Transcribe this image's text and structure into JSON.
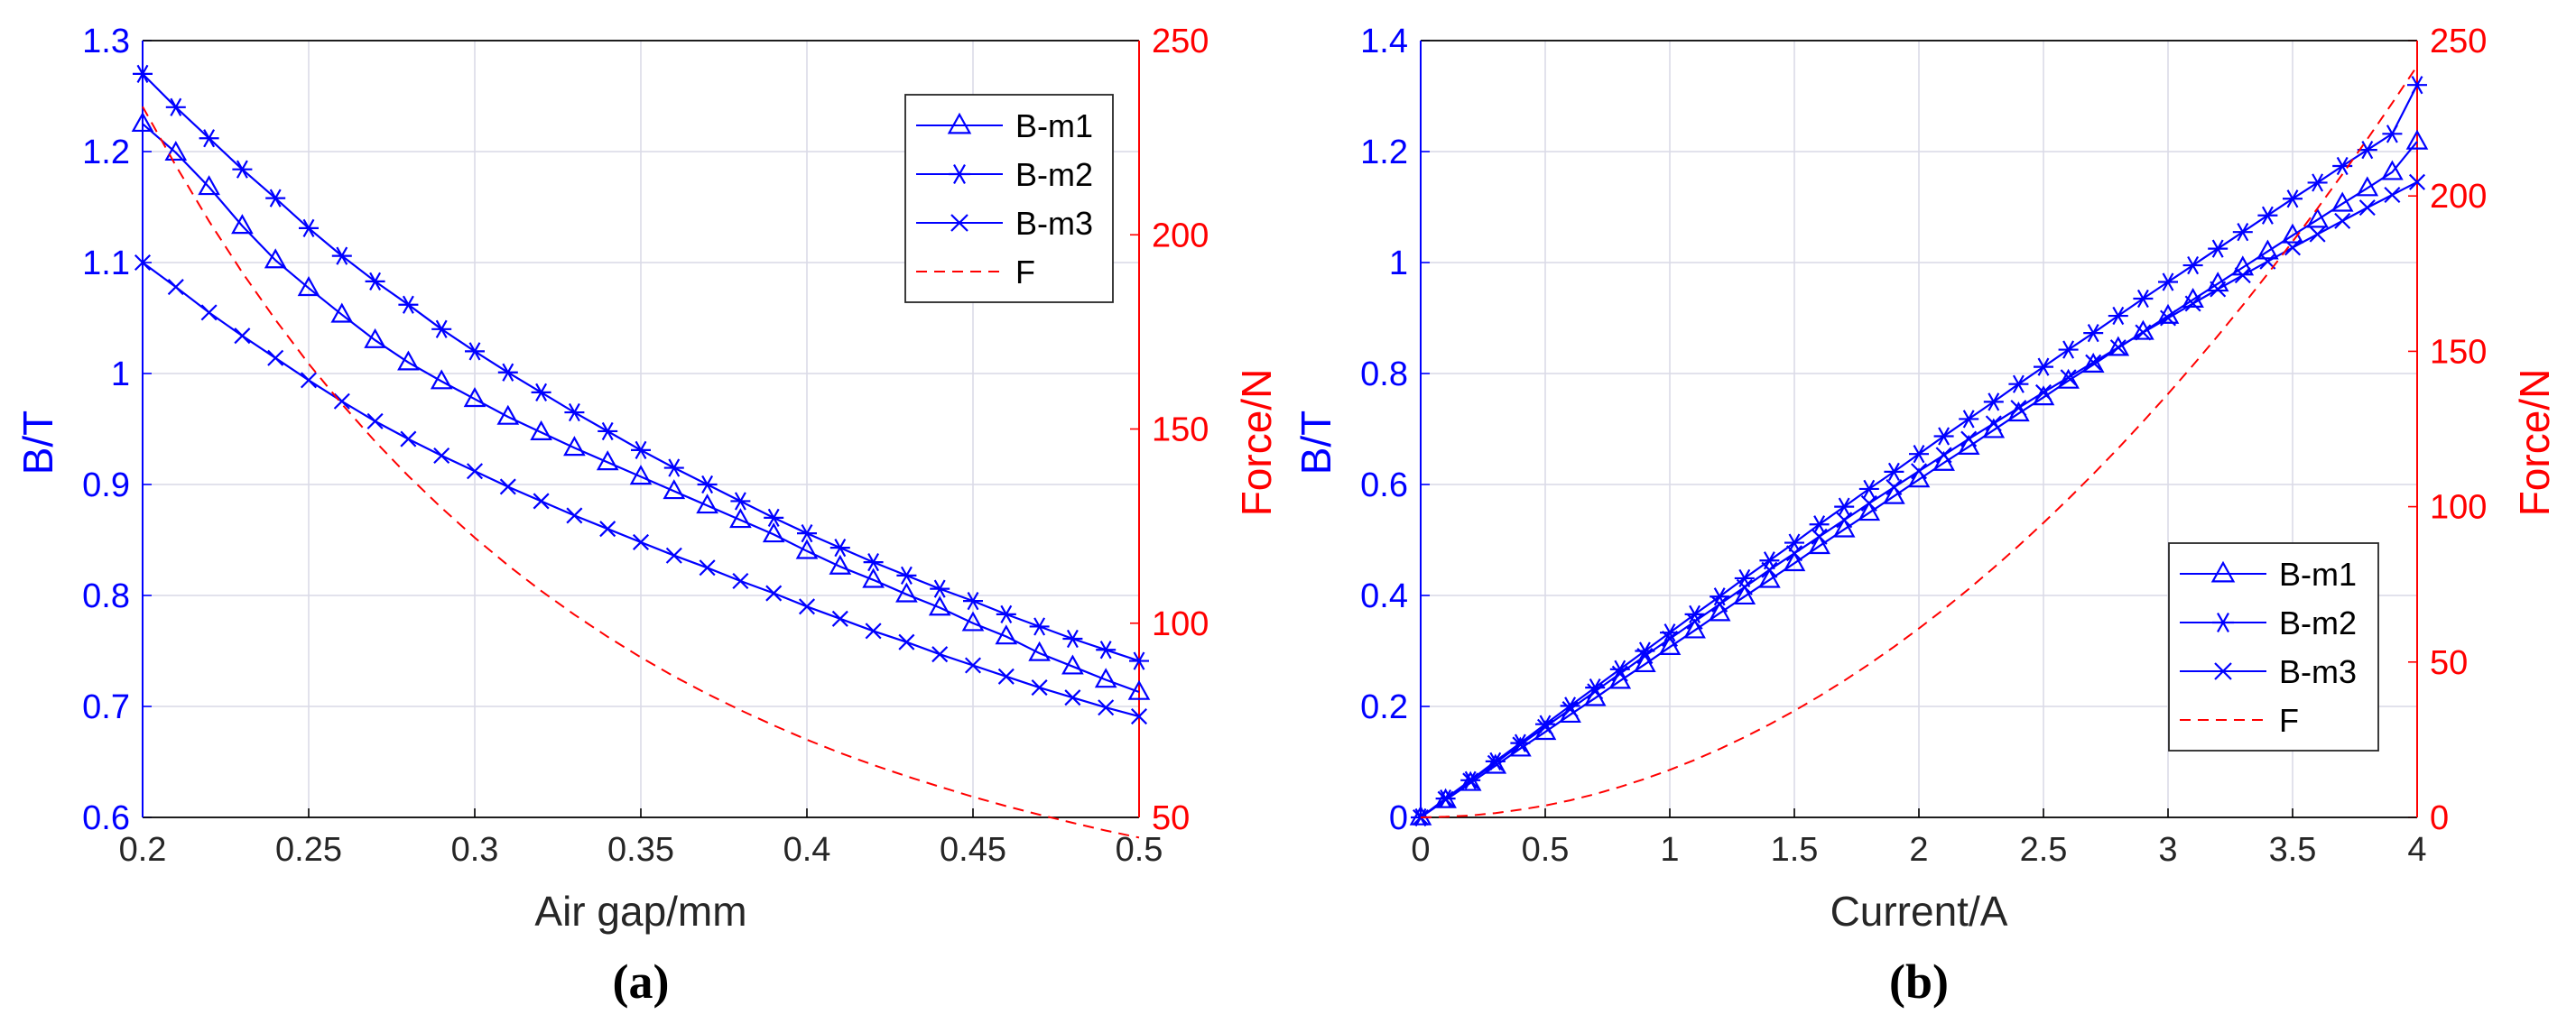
{
  "colors": {
    "left_axis": "#0000FF",
    "right_axis": "#FF0000",
    "grid": "#D9D9E6",
    "frame": "#000000"
  },
  "chart_data": [
    {
      "type": "line",
      "panel_label": "(a)",
      "xlabel": "Air gap/mm",
      "ylabel": "B/T",
      "y2label": "Force/N",
      "xlim": [
        0.2,
        0.5
      ],
      "ylim": [
        0.6,
        1.3
      ],
      "y2lim": [
        50,
        250
      ],
      "xticks": [
        "0.2",
        "0.25",
        "0.3",
        "0.35",
        "0.4",
        "0.45",
        "0.5"
      ],
      "yticks": [
        "0.6",
        "0.7",
        "0.8",
        "0.9",
        "1",
        "1.1",
        "1.2",
        "1.3"
      ],
      "y2ticks": [
        "50",
        "100",
        "150",
        "200",
        "250"
      ],
      "grid": true,
      "legend_position": "top-right",
      "x": [
        0.2,
        0.21,
        0.22,
        0.23,
        0.24,
        0.25,
        0.26,
        0.27,
        0.28,
        0.29,
        0.3,
        0.31,
        0.32,
        0.33,
        0.34,
        0.35,
        0.36,
        0.37,
        0.38,
        0.39,
        0.4,
        0.41,
        0.42,
        0.43,
        0.44,
        0.45,
        0.46,
        0.47,
        0.48,
        0.49,
        0.5
      ],
      "series": [
        {
          "name": "B-m1",
          "marker": "triangle",
          "axis": "left",
          "dash": "solid",
          "values": [
            1.225,
            1.199,
            1.168,
            1.133,
            1.102,
            1.077,
            1.053,
            1.03,
            1.01,
            0.993,
            0.977,
            0.961,
            0.947,
            0.933,
            0.92,
            0.907,
            0.894,
            0.881,
            0.868,
            0.855,
            0.84,
            0.826,
            0.814,
            0.801,
            0.789,
            0.775,
            0.763,
            0.748,
            0.736,
            0.724,
            0.713
          ]
        },
        {
          "name": "B-m2",
          "marker": "asterisk",
          "axis": "left",
          "dash": "solid",
          "values": [
            1.27,
            1.24,
            1.212,
            1.184,
            1.158,
            1.131,
            1.106,
            1.083,
            1.062,
            1.04,
            1.02,
            1.001,
            0.983,
            0.965,
            0.948,
            0.931,
            0.915,
            0.9,
            0.885,
            0.87,
            0.856,
            0.843,
            0.83,
            0.818,
            0.806,
            0.795,
            0.783,
            0.772,
            0.761,
            0.751,
            0.741
          ]
        },
        {
          "name": "B-m3",
          "marker": "x",
          "axis": "left",
          "dash": "solid",
          "values": [
            1.1,
            1.078,
            1.055,
            1.034,
            1.014,
            0.994,
            0.975,
            0.957,
            0.941,
            0.926,
            0.912,
            0.898,
            0.885,
            0.872,
            0.86,
            0.848,
            0.836,
            0.825,
            0.813,
            0.802,
            0.79,
            0.779,
            0.768,
            0.758,
            0.747,
            0.737,
            0.727,
            0.717,
            0.708,
            0.699,
            0.691
          ]
        },
        {
          "name": "F",
          "marker": "none",
          "axis": "right",
          "dash": "dashed",
          "values": [
            233.0,
            217.8,
            203.5,
            190.3,
            178.1,
            166.8,
            156.4,
            146.8,
            137.9,
            129.7,
            122.0,
            114.9,
            108.3,
            102.2,
            96.5,
            91.2,
            86.3,
            81.8,
            77.6,
            73.7,
            70.0,
            66.6,
            63.5,
            60.6,
            57.9,
            55.3,
            52.9,
            50.7,
            48.6,
            46.6,
            44.8
          ]
        }
      ]
    },
    {
      "type": "line",
      "panel_label": "(b)",
      "xlabel": "Current/A",
      "ylabel": "B/T",
      "y2label": "Force/N",
      "xlim": [
        0,
        4
      ],
      "ylim": [
        0,
        1.4
      ],
      "y2lim": [
        0,
        250
      ],
      "xticks": [
        "0",
        "0.5",
        "1",
        "1.5",
        "2",
        "2.5",
        "3",
        "3.5",
        "4"
      ],
      "yticks": [
        "0",
        "0.2",
        "0.4",
        "0.6",
        "0.8",
        "1",
        "1.2",
        "1.4"
      ],
      "y2ticks": [
        "0",
        "50",
        "100",
        "150",
        "200",
        "250"
      ],
      "grid": true,
      "legend_position": "bottom-right",
      "x": [
        0,
        0.1,
        0.2,
        0.3,
        0.4,
        0.5,
        0.6,
        0.7,
        0.8,
        0.9,
        1.0,
        1.1,
        1.2,
        1.3,
        1.4,
        1.5,
        1.6,
        1.7,
        1.8,
        1.9,
        2.0,
        2.1,
        2.2,
        2.3,
        2.4,
        2.5,
        2.6,
        2.7,
        2.8,
        2.9,
        3.0,
        3.1,
        3.2,
        3.3,
        3.4,
        3.5,
        3.6,
        3.7,
        3.8,
        3.9,
        4.0
      ],
      "series": [
        {
          "name": "B-m1",
          "marker": "triangle",
          "axis": "left",
          "dash": "solid",
          "values": [
            0.0,
            0.031,
            0.062,
            0.093,
            0.124,
            0.154,
            0.185,
            0.215,
            0.246,
            0.276,
            0.307,
            0.337,
            0.368,
            0.398,
            0.428,
            0.458,
            0.489,
            0.519,
            0.549,
            0.579,
            0.609,
            0.639,
            0.668,
            0.698,
            0.728,
            0.757,
            0.787,
            0.816,
            0.846,
            0.875,
            0.904,
            0.933,
            0.962,
            0.991,
            1.02,
            1.049,
            1.077,
            1.106,
            1.134,
            1.163,
            1.218
          ]
        },
        {
          "name": "B-m2",
          "marker": "asterisk",
          "axis": "left",
          "dash": "solid",
          "values": [
            0.0,
            0.034,
            0.067,
            0.101,
            0.134,
            0.168,
            0.201,
            0.234,
            0.267,
            0.3,
            0.333,
            0.366,
            0.398,
            0.431,
            0.463,
            0.495,
            0.528,
            0.56,
            0.592,
            0.623,
            0.655,
            0.687,
            0.718,
            0.749,
            0.781,
            0.812,
            0.843,
            0.873,
            0.904,
            0.935,
            0.965,
            0.995,
            1.025,
            1.055,
            1.085,
            1.115,
            1.144,
            1.174,
            1.203,
            1.232,
            1.32
          ]
        },
        {
          "name": "B-m3",
          "marker": "x",
          "axis": "left",
          "dash": "solid",
          "values": [
            0.0,
            0.033,
            0.066,
            0.098,
            0.131,
            0.163,
            0.195,
            0.227,
            0.259,
            0.291,
            0.322,
            0.353,
            0.384,
            0.415,
            0.446,
            0.476,
            0.506,
            0.536,
            0.566,
            0.595,
            0.624,
            0.653,
            0.682,
            0.71,
            0.738,
            0.766,
            0.793,
            0.82,
            0.847,
            0.874,
            0.9,
            0.926,
            0.952,
            0.977,
            1.002,
            1.027,
            1.051,
            1.075,
            1.099,
            1.122,
            1.145
          ]
        },
        {
          "name": "F",
          "marker": "none",
          "axis": "right",
          "dash": "dashed",
          "values": [
            0.0,
            0.2,
            0.6,
            1.4,
            2.5,
            3.8,
            5.5,
            7.5,
            9.8,
            12.4,
            15.3,
            18.5,
            22.0,
            25.8,
            29.9,
            34.3,
            39.0,
            44.0,
            49.3,
            54.9,
            60.8,
            67.0,
            73.5,
            80.3,
            87.4,
            94.8,
            102.5,
            110.5,
            118.8,
            127.4,
            136.3,
            145.5,
            155.0,
            164.8,
            174.9,
            185.3,
            196.0,
            207.0,
            218.3,
            229.9,
            241.8
          ]
        }
      ]
    }
  ]
}
